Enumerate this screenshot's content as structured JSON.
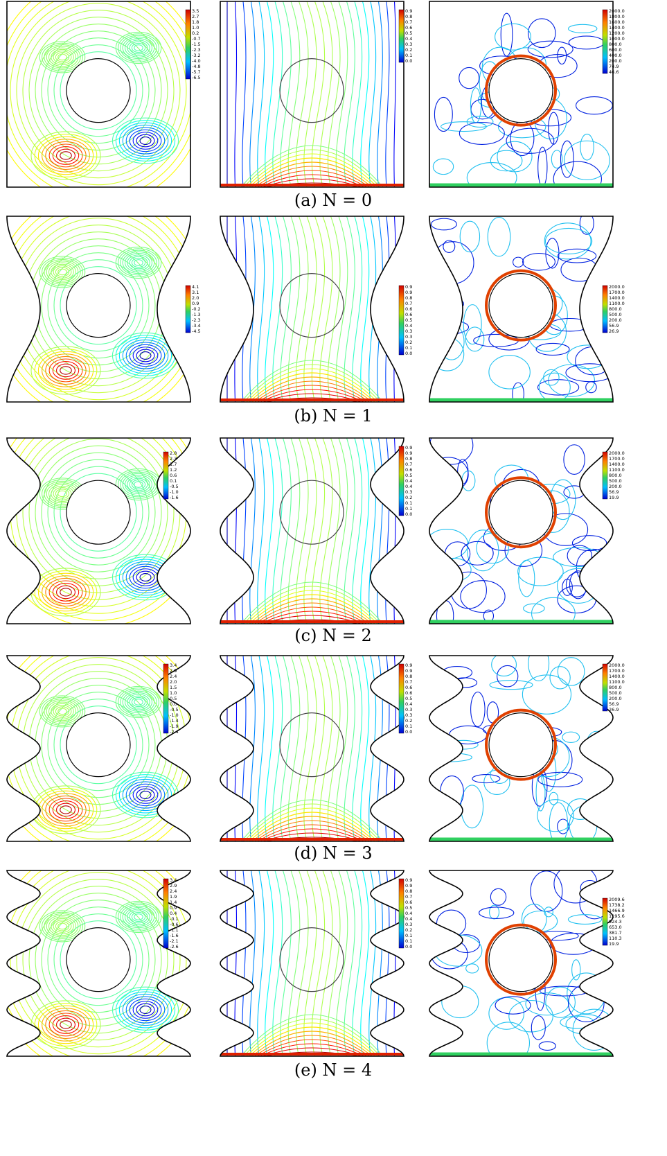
{
  "figure": {
    "rows": [
      {
        "caption": "(a) N = 0",
        "panels": [
          {
            "colorbar": [
              "3.5",
              "2.7",
              "1.8",
              "1.0",
              "0.2",
              "-0.7",
              "-1.5",
              "-2.3",
              "-3.2",
              "-4.0",
              "-4.8",
              "-5.7",
              "-6.5"
            ]
          },
          {
            "colorbar": [
              "0.9",
              "0.8",
              "0.7",
              "0.6",
              "0.5",
              "0.4",
              "0.3",
              "0.2",
              "0.1",
              "0.0"
            ]
          },
          {
            "colorbar": [
              "2000.0",
              "1800.0",
              "1600.0",
              "1400.0",
              "1200.0",
              "1000.0",
              "800.0",
              "600.0",
              "400.0",
              "200.0",
              "74.9",
              "46.6"
            ]
          }
        ]
      },
      {
        "caption": "(b) N = 1",
        "panels": [
          {
            "colorbar": [
              "4.1",
              "3.1",
              "2.0",
              "0.9",
              "-0.2",
              "-1.3",
              "-2.3",
              "-3.4",
              "-4.5"
            ]
          },
          {
            "colorbar": [
              "0.9",
              "0.9",
              "0.8",
              "0.7",
              "0.6",
              "0.6",
              "0.5",
              "0.4",
              "0.3",
              "0.3",
              "0.2",
              "0.1",
              "0.0"
            ]
          },
          {
            "colorbar": [
              "2000.0",
              "1700.0",
              "1400.0",
              "1100.0",
              "800.0",
              "500.0",
              "200.0",
              "56.9",
              "26.9"
            ]
          }
        ]
      },
      {
        "caption": "(c) N = 2",
        "panels": [
          {
            "colorbar": [
              "2.8",
              "2.3",
              "1.7",
              "1.2",
              "0.6",
              "0.1",
              "-0.5",
              "-1.0",
              "-1.6"
            ]
          },
          {
            "colorbar": [
              "0.9",
              "0.9",
              "0.8",
              "0.7",
              "0.6",
              "0.5",
              "0.4",
              "0.4",
              "0.3",
              "0.2",
              "0.1",
              "0.1",
              "0.0"
            ]
          },
          {
            "colorbar": [
              "2000.0",
              "1700.0",
              "1400.0",
              "1100.0",
              "800.0",
              "500.0",
              "200.0",
              "56.9",
              "19.9"
            ]
          }
        ]
      },
      {
        "caption": "(d) N = 3",
        "panels": [
          {
            "colorbar": [
              "3.4",
              "2.9",
              "2.4",
              "2.0",
              "1.5",
              "1.0",
              "0.5",
              "0.0",
              "-0.5",
              "-1.0",
              "-1.4",
              "-1.9",
              "-2.4"
            ]
          },
          {
            "colorbar": [
              "0.9",
              "0.9",
              "0.8",
              "0.7",
              "0.6",
              "0.6",
              "0.5",
              "0.4",
              "0.3",
              "0.3",
              "0.2",
              "0.1",
              "0.0"
            ]
          },
          {
            "colorbar": [
              "2000.0",
              "1700.0",
              "1400.0",
              "1100.0",
              "800.0",
              "500.0",
              "200.0",
              "56.9",
              "26.9"
            ]
          }
        ]
      },
      {
        "caption": "(e) N = 4",
        "panels": [
          {
            "colorbar": [
              "3.4",
              "2.9",
              "2.4",
              "1.9",
              "1.4",
              "0.9",
              "0.4",
              "-0.1",
              "-0.6",
              "-1.1",
              "-1.6",
              "-2.1",
              "-2.6"
            ]
          },
          {
            "colorbar": [
              "0.9",
              "0.9",
              "0.8",
              "0.7",
              "0.6",
              "0.5",
              "0.4",
              "0.4",
              "0.3",
              "0.2",
              "0.1",
              "0.1",
              "0.0"
            ]
          },
          {
            "colorbar": [
              "2009.6",
              "1738.2",
              "1466.9",
              "1195.6",
              "924.3",
              "653.0",
              "381.7",
              "110.3",
              "19.9"
            ]
          }
        ]
      }
    ]
  }
}
